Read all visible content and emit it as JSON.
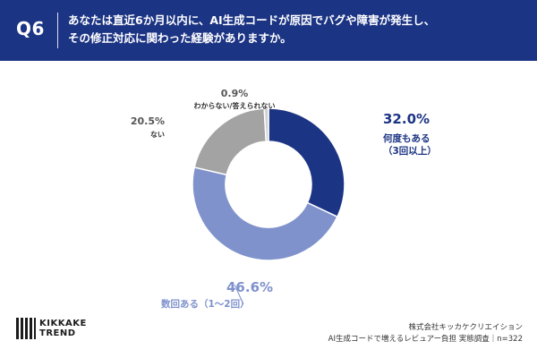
{
  "header": {
    "question_number": "Q6",
    "question_line1": "あなたは直近6か月以内に、AI生成コードが原因でバグや障害が発生し、",
    "question_line2": "その修正対応に関わった経験がありますか。"
  },
  "chart_data": {
    "type": "pie",
    "categories": [
      "何度もある（3回以上）",
      "数回ある（1〜2回）",
      "ない",
      "わからない/答えられない"
    ],
    "values": [
      32.0,
      46.6,
      20.5,
      0.9
    ],
    "value_labels": [
      "32.0%",
      "46.6%",
      "20.5%",
      "0.9%"
    ],
    "label_lines": [
      [
        "何度もある",
        "（3回以上）"
      ],
      [
        "数回ある（1〜2回）"
      ],
      [
        "ない"
      ],
      [
        "わからない/答えられない"
      ]
    ],
    "colors": [
      "#1c3484",
      "#7f92cc",
      "#a3a3a3",
      "#d0d0d0"
    ],
    "donut": true
  },
  "footer": {
    "logo_line1": "KIKKAKE",
    "logo_line2": "TREND",
    "company": "株式会社キッカケクリエイション",
    "survey": "AI生成コードで増えるレビュアー負担 実態調査｜n=322"
  }
}
